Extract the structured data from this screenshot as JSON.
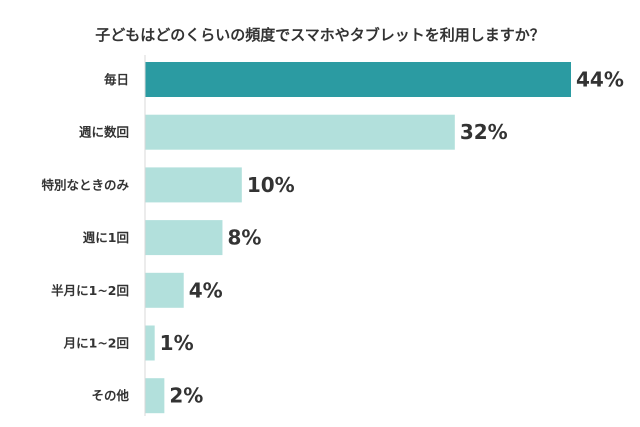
{
  "chart_data": {
    "type": "bar",
    "orientation": "horizontal",
    "title": "子どもはどのくらいの頻度でスマホやタブレットを利用しますか？",
    "categories": [
      "毎日",
      "週に数回",
      "特別なときのみ",
      "週に1回",
      "半月に1~2回",
      "月に1~2回",
      "その他"
    ],
    "values": [
      44,
      32,
      10,
      8,
      4,
      1,
      2
    ],
    "value_labels": [
      "44%",
      "32%",
      "10%",
      "8%",
      "4%",
      "1%",
      "2%"
    ],
    "xlim": [
      0,
      44
    ],
    "grid": false,
    "legend": "none",
    "colors": {
      "highlight": "#2b9ba2",
      "bar": "#b2e0dc",
      "text": "#333333",
      "axis": "#d9d9d9"
    }
  }
}
